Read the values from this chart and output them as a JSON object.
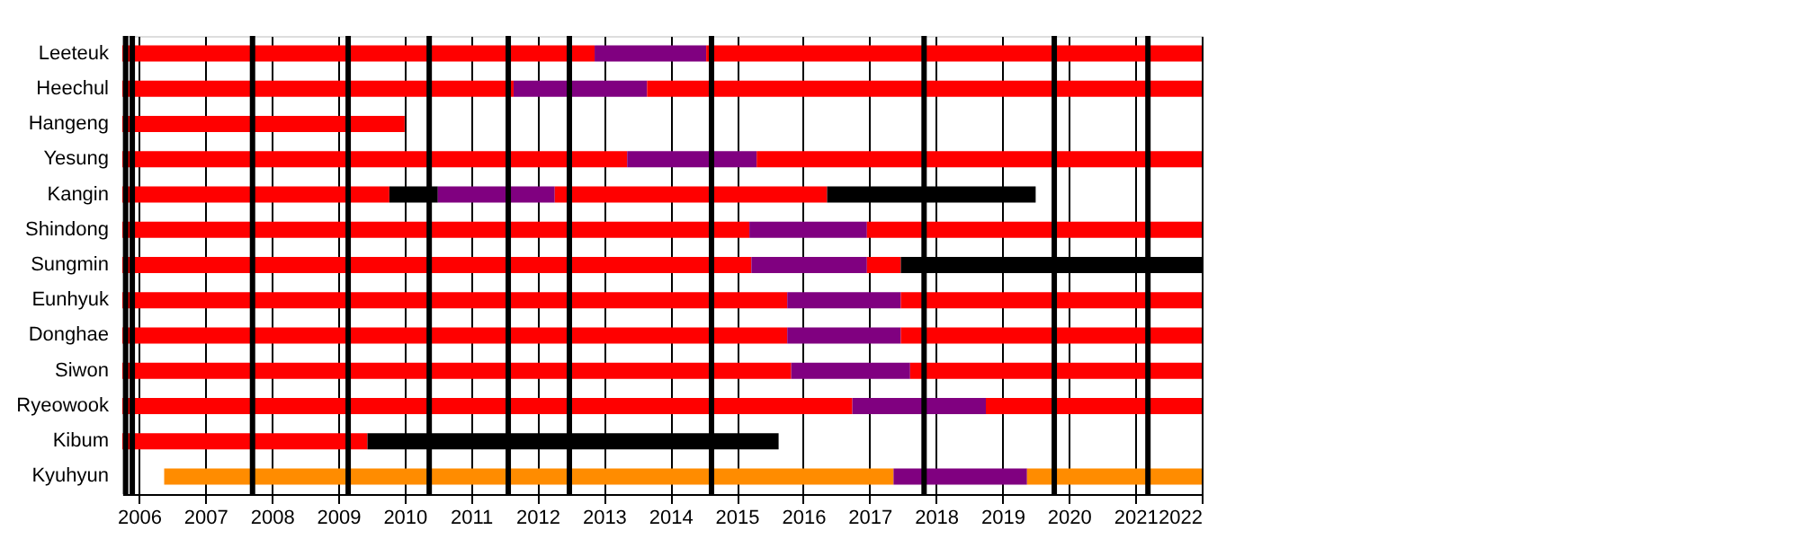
{
  "chart_data": {
    "type": "bar",
    "orientation": "horizontal",
    "grid": "x",
    "categories": [
      "Leeteuk",
      "Heechul",
      "Hangeng",
      "Yesung",
      "Kangin",
      "Shindong",
      "Sungmin",
      "Eunhyuk",
      "Donghae",
      "Siwon",
      "Ryeowook",
      "Kibum",
      "Kyuhyun"
    ],
    "xlim": [
      2005.75,
      2022
    ],
    "xticks": [
      2006,
      2007,
      2008,
      2009,
      2010,
      2011,
      2012,
      2013,
      2014,
      2015,
      2016,
      2017,
      2018,
      2019,
      2020,
      2021,
      2022
    ],
    "series": [
      {
        "base": [
          2005.75,
          2005.75,
          2005.75,
          2005.75,
          2005.75,
          2005.75,
          2005.75,
          2005.75,
          2005.75,
          2005.75,
          2005.75,
          2005.75,
          2006.38
        ],
        "values": [
          7.11,
          5.89,
          4.25,
          7.6,
          4.02,
          9.44,
          9.47,
          10.01,
          10.01,
          10.07,
          10.99,
          3.69,
          10.98
        ],
        "colors": [
          "#ff0000",
          "#ff0000",
          "#ff0000",
          "#ff0000",
          "#ff0000",
          "#ff0000",
          "#ff0000",
          "#ff0000",
          "#ff0000",
          "#ff0000",
          "#ff0000",
          "#ff0000",
          "#ff8c00"
        ]
      },
      {
        "base": [
          2012.86,
          2011.64,
          null,
          2013.35,
          2009.77,
          2015.19,
          2015.22,
          2015.76,
          2015.76,
          2015.82,
          2016.74,
          2009.44,
          2017.36
        ],
        "values": [
          1.68,
          2.01,
          null,
          1.95,
          0.73,
          1.77,
          1.74,
          1.71,
          1.71,
          1.79,
          2.01,
          6.19,
          2.01
        ],
        "colors": [
          "#800080",
          "#800080",
          null,
          "#800080",
          "#000000",
          "#800080",
          "#800080",
          "#800080",
          "#800080",
          "#800080",
          "#800080",
          "#000000",
          "#800080"
        ]
      },
      {
        "base": [
          2014.54,
          2013.65,
          null,
          2015.3,
          2010.5,
          2016.96,
          2016.96,
          2017.47,
          2017.47,
          2017.61,
          2018.75,
          null,
          2019.37
        ],
        "values": [
          7.46,
          8.35,
          null,
          6.7,
          1.76,
          5.04,
          0.51,
          4.53,
          4.53,
          4.39,
          3.25,
          null,
          2.63
        ],
        "colors": [
          "#ff0000",
          "#ff0000",
          null,
          "#ff0000",
          "#800080",
          "#ff0000",
          "#ff0000",
          "#ff0000",
          "#ff0000",
          "#ff0000",
          "#ff0000",
          null,
          "#ff8c00"
        ]
      },
      {
        "base": [
          null,
          null,
          null,
          null,
          2012.26,
          null,
          2017.47,
          null,
          null,
          null,
          null,
          null,
          null
        ],
        "values": [
          null,
          null,
          null,
          null,
          4.1,
          null,
          4.53,
          null,
          null,
          null,
          null,
          null,
          null
        ],
        "colors": [
          null,
          null,
          null,
          null,
          "#ff0000",
          null,
          "#000000",
          null,
          null,
          null,
          null,
          null,
          null
        ]
      },
      {
        "base": [
          null,
          null,
          null,
          null,
          2016.36,
          null,
          null,
          null,
          null,
          null,
          null,
          null,
          null
        ],
        "values": [
          null,
          null,
          null,
          null,
          3.14,
          null,
          null,
          null,
          null,
          null,
          null,
          null,
          null
        ],
        "colors": [
          null,
          null,
          null,
          null,
          "#000000",
          null,
          null,
          null,
          null,
          null,
          null,
          null,
          null
        ]
      }
    ],
    "ref_lines": [
      {
        "axis": "x",
        "value": 2005.8,
        "color": "#000000"
      },
      {
        "axis": "x",
        "value": 2005.9,
        "color": "#000000"
      },
      {
        "axis": "x",
        "value": 2007.71,
        "color": "#000000"
      },
      {
        "axis": "x",
        "value": 2009.15,
        "color": "#000000"
      },
      {
        "axis": "x",
        "value": 2010.37,
        "color": "#000000"
      },
      {
        "axis": "x",
        "value": 2011.56,
        "color": "#000000"
      },
      {
        "axis": "x",
        "value": 2012.48,
        "color": "#000000"
      },
      {
        "axis": "x",
        "value": 2014.62,
        "color": "#000000"
      },
      {
        "axis": "x",
        "value": 2017.82,
        "color": "#000000"
      },
      {
        "axis": "x",
        "value": 2019.78,
        "color": "#000000"
      },
      {
        "axis": "x",
        "value": 2021.19,
        "color": "#000000"
      }
    ]
  }
}
